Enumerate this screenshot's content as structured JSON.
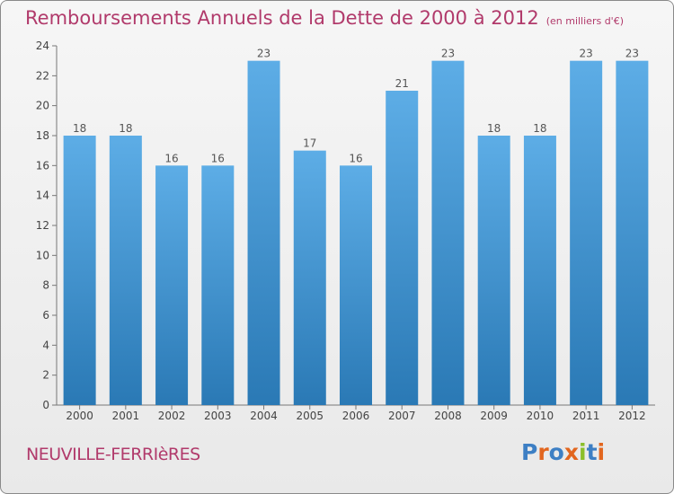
{
  "page": {
    "title": "Remboursements Annuels de la Dette de 2000 à 2012",
    "unit": "(en milliers d'€)",
    "commune": "NEUVILLE-FERRIèRES",
    "logo": "Proxiti"
  },
  "colors": {
    "title": "#b13a6b",
    "bar_light": "#5dade6",
    "bar_dark": "#2a79b5",
    "logo_letters": [
      "#3d7fc4",
      "#e2661f",
      "#3d7fc4",
      "#e2661f",
      "#8bbf2a",
      "#3d7fc4",
      "#e2661f"
    ]
  },
  "chart_data": {
    "type": "bar",
    "title": "Remboursements Annuels de la Dette de 2000 à 2012",
    "subtitle": "(en milliers d'€)",
    "categories": [
      "2000",
      "2001",
      "2002",
      "2003",
      "2004",
      "2005",
      "2006",
      "2007",
      "2008",
      "2009",
      "2010",
      "2011",
      "2012"
    ],
    "values": [
      18,
      18,
      16,
      16,
      23,
      17,
      16,
      21,
      23,
      18,
      18,
      23,
      23
    ],
    "data_labels": [
      "18",
      "18",
      "16",
      "16",
      "23",
      "17",
      "16",
      "21",
      "23",
      "18",
      "18",
      "23",
      "23"
    ],
    "ylim": [
      0,
      24
    ],
    "yticks": [
      "0",
      "2",
      "4",
      "6",
      "8",
      "10",
      "12",
      "14",
      "16",
      "18",
      "20",
      "22",
      "24"
    ],
    "grid": false,
    "legend": "none"
  }
}
